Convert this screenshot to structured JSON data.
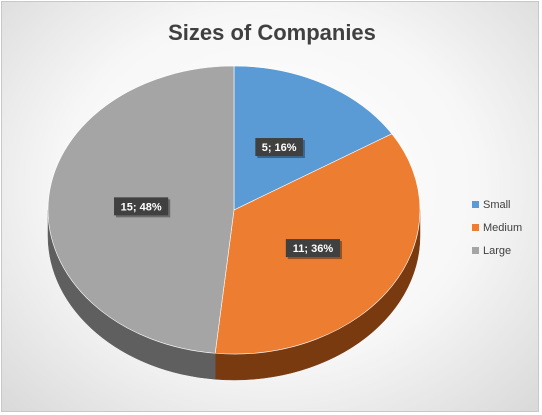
{
  "chart_data": {
    "type": "pie",
    "title": "Sizes of Companies",
    "categories": [
      "Small",
      "Medium",
      "Large"
    ],
    "values": [
      5,
      11,
      15
    ],
    "percents": [
      16,
      36,
      48
    ],
    "data_labels": [
      "5; 16%",
      "11; 36%",
      "15; 48%"
    ],
    "legend": [
      "Small",
      "Medium",
      "Large"
    ],
    "legend_position": "right",
    "colors": [
      "#5B9BD5",
      "#ED7D31",
      "#A5A5A5"
    ],
    "side_colors": [
      "#2E5F8C",
      "#7A3A10",
      "#5F5F5F"
    ],
    "style": "3d",
    "start_angle_deg": 0,
    "direction": "clockwise"
  }
}
